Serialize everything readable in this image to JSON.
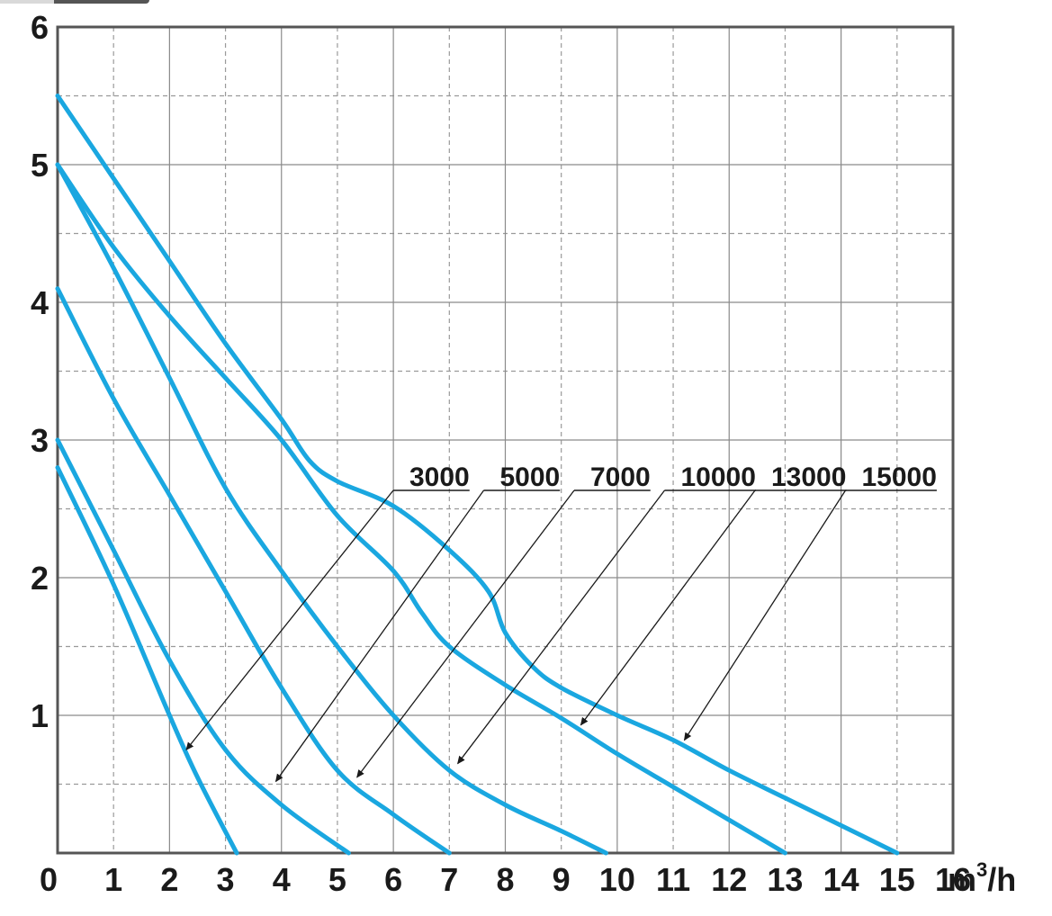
{
  "chart_data": {
    "type": "line",
    "title": "",
    "xlabel": "",
    "ylabel": "",
    "x_unit_base": "m",
    "x_unit_sup": "3",
    "x_unit_tail": "/h",
    "xlim": [
      0,
      16
    ],
    "ylim": [
      0,
      6
    ],
    "x_ticks": [
      "0",
      "1",
      "2",
      "3",
      "4",
      "5",
      "6",
      "7",
      "8",
      "9",
      "10",
      "11",
      "12",
      "13",
      "14",
      "15",
      "16"
    ],
    "y_ticks": [
      "1",
      "2",
      "3",
      "4",
      "5",
      "6"
    ],
    "grid": true,
    "line_color": "#1aa7e0",
    "series": [
      {
        "name": "3000",
        "points": [
          [
            0,
            2.8
          ],
          [
            1,
            1.95
          ],
          [
            2,
            1.0
          ],
          [
            2.5,
            0.55
          ],
          [
            3.2,
            0
          ]
        ]
      },
      {
        "name": "5000",
        "points": [
          [
            0,
            3.0
          ],
          [
            1,
            2.2
          ],
          [
            2,
            1.4
          ],
          [
            3,
            0.75
          ],
          [
            4,
            0.35
          ],
          [
            5.2,
            0
          ]
        ]
      },
      {
        "name": "7000",
        "points": [
          [
            0,
            4.1
          ],
          [
            1,
            3.3
          ],
          [
            2,
            2.6
          ],
          [
            3,
            1.9
          ],
          [
            4,
            1.2
          ],
          [
            5,
            0.6
          ],
          [
            6,
            0.28
          ],
          [
            7,
            0
          ]
        ]
      },
      {
        "name": "10000",
        "points": [
          [
            0,
            5.0
          ],
          [
            1,
            4.25
          ],
          [
            2,
            3.45
          ],
          [
            3,
            2.65
          ],
          [
            4,
            2.05
          ],
          [
            5,
            1.5
          ],
          [
            6,
            1.0
          ],
          [
            7,
            0.6
          ],
          [
            8,
            0.35
          ],
          [
            9,
            0.16
          ],
          [
            9.8,
            0
          ]
        ]
      },
      {
        "name": "13000",
        "points": [
          [
            0,
            5.0
          ],
          [
            1,
            4.4
          ],
          [
            2,
            3.9
          ],
          [
            3,
            3.45
          ],
          [
            4,
            3.0
          ],
          [
            5,
            2.45
          ],
          [
            6,
            2.05
          ],
          [
            6.5,
            1.75
          ],
          [
            7,
            1.5
          ],
          [
            8,
            1.22
          ],
          [
            9,
            0.98
          ],
          [
            10,
            0.72
          ],
          [
            11,
            0.48
          ],
          [
            12,
            0.24
          ],
          [
            13,
            0
          ]
        ]
      },
      {
        "name": "15000",
        "points": [
          [
            0,
            5.5
          ],
          [
            1,
            4.9
          ],
          [
            2,
            4.3
          ],
          [
            3,
            3.7
          ],
          [
            4,
            3.15
          ],
          [
            4.5,
            2.85
          ],
          [
            5,
            2.7
          ],
          [
            6,
            2.52
          ],
          [
            7,
            2.2
          ],
          [
            7.7,
            1.9
          ],
          [
            8,
            1.6
          ],
          [
            8.5,
            1.35
          ],
          [
            9,
            1.2
          ],
          [
            10,
            1.0
          ],
          [
            11,
            0.82
          ],
          [
            12,
            0.6
          ],
          [
            13,
            0.4
          ],
          [
            14,
            0.2
          ],
          [
            15,
            0
          ]
        ]
      }
    ],
    "callouts": [
      {
        "label": "3000",
        "arrow_to": [
          2.3,
          0.75
        ]
      },
      {
        "label": "5000",
        "arrow_to": [
          3.9,
          0.52
        ]
      },
      {
        "label": "7000",
        "arrow_to": [
          5.35,
          0.55
        ]
      },
      {
        "label": "10000",
        "arrow_to": [
          7.15,
          0.65
        ]
      },
      {
        "label": "13000",
        "arrow_to": [
          9.35,
          0.93
        ]
      },
      {
        "label": "15000",
        "arrow_to": [
          11.2,
          0.82
        ]
      }
    ]
  }
}
